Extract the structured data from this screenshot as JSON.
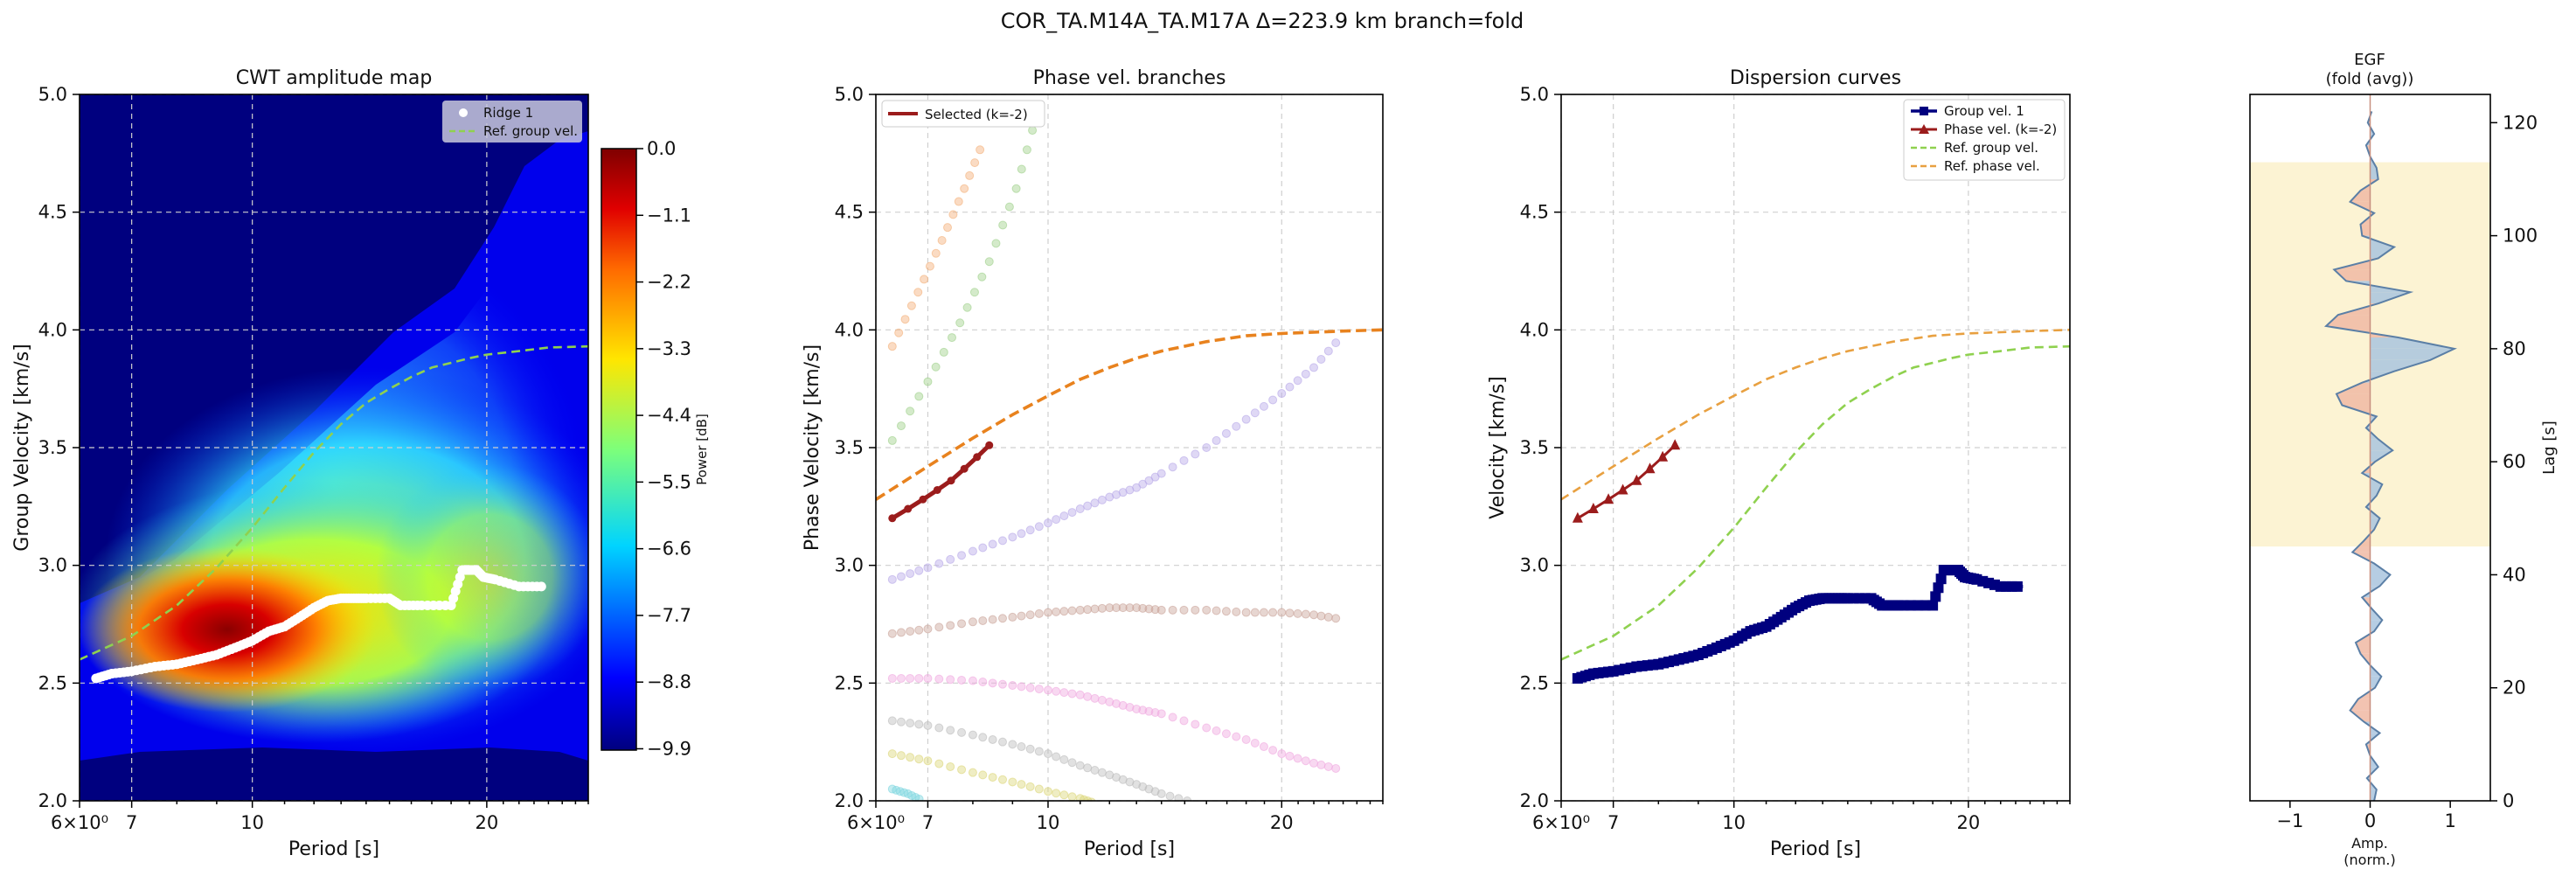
{
  "suptitle": "COR_TA.M14A_TA.M17A  Δ=223.9 km  branch=fold",
  "colors": {
    "ridge": "#ffffff",
    "ref_group": "#8fd14f",
    "ref_phase": "#e8821e",
    "selected": "#9b1c1c",
    "group_curve": "#00007f",
    "phase_curve": "#9b1c1c",
    "egf_line": "#5b7fa6",
    "egf_pos": "#a9c4de",
    "egf_neg": "#f0b8a3",
    "window": "#fbefc4"
  },
  "chart_data": [
    {
      "type": "heatmap",
      "title": "CWT amplitude map",
      "xlabel": "Period [s]",
      "ylabel": "Group Velocity [km/s]",
      "xscale": "log",
      "xlim": [
        6,
        27
      ],
      "ylim": [
        2.0,
        5.0
      ],
      "xticks": [
        6,
        7,
        10,
        20
      ],
      "xtick_labels": [
        "6×10⁰",
        "7",
        "10",
        "20"
      ],
      "yticks": [
        2.0,
        2.5,
        3.0,
        3.5,
        4.0,
        4.5,
        5.0
      ],
      "ytick_labels": [
        "2.0",
        "2.5",
        "3.0",
        "3.5",
        "4.0",
        "4.5",
        "5.0"
      ],
      "grid": true,
      "legend": {
        "position": "top-right",
        "entries": [
          "Ridge 1",
          "Ref. group vel."
        ]
      },
      "colorbar": {
        "label": "Power [dB]",
        "range": [
          -9.9,
          0.0
        ],
        "ticks": [
          "0.0",
          "−1.1",
          "−2.2",
          "−3.3",
          "−4.4",
          "−5.5",
          "−6.6",
          "−7.7",
          "−8.8",
          "−9.9"
        ]
      },
      "ridge": {
        "name": "Ridge 1",
        "x": [
          6.3,
          6.6,
          7.0,
          7.5,
          8.0,
          8.5,
          9.0,
          9.5,
          10.0,
          10.5,
          11.0,
          11.5,
          12.0,
          12.5,
          13.0,
          13.5,
          14.0,
          15.0,
          15.5,
          16.5,
          18.0,
          18.6,
          19.0,
          19.4,
          19.8,
          20.5,
          22.0,
          23.5
        ],
        "y": [
          2.52,
          2.54,
          2.55,
          2.57,
          2.58,
          2.6,
          2.62,
          2.65,
          2.68,
          2.72,
          2.74,
          2.78,
          2.82,
          2.85,
          2.86,
          2.86,
          2.86,
          2.86,
          2.83,
          2.83,
          2.83,
          2.98,
          2.98,
          2.98,
          2.95,
          2.94,
          2.91,
          2.91
        ]
      },
      "ref_group": {
        "name": "Ref. group vel.",
        "x": [
          6.0,
          7.0,
          8.0,
          9.0,
          10.0,
          11.0,
          12.0,
          13.0,
          14.0,
          15.0,
          16.0,
          17.0,
          18.0,
          19.0,
          20.0,
          22.0,
          24.0,
          27.0
        ],
        "y": [
          2.6,
          2.7,
          2.83,
          2.99,
          3.16,
          3.33,
          3.48,
          3.6,
          3.69,
          3.75,
          3.8,
          3.84,
          3.86,
          3.88,
          3.895,
          3.91,
          3.925,
          3.93
        ]
      }
    },
    {
      "type": "scatter",
      "title": "Phase vel. branches",
      "xlabel": "Period [s]",
      "ylabel": "Phase Velocity [km/s]",
      "xscale": "log",
      "xlim": [
        6,
        27
      ],
      "ylim": [
        2.0,
        5.0
      ],
      "xticks": [
        6,
        7,
        10,
        20
      ],
      "xtick_labels": [
        "6×10⁰",
        "7",
        "10",
        "20"
      ],
      "yticks": [
        2.0,
        2.5,
        3.0,
        3.5,
        4.0,
        4.5,
        5.0
      ],
      "ytick_labels": [
        "2.0",
        "2.5",
        "3.0",
        "3.5",
        "4.0",
        "4.5",
        "5.0"
      ],
      "grid": true,
      "legend": {
        "position": "top-left",
        "entries": [
          "Selected (k=-2)"
        ]
      },
      "selected": {
        "name": "Selected (k=-2)",
        "x": [
          6.3,
          6.6,
          6.9,
          7.2,
          7.5,
          7.8,
          8.1,
          8.4
        ],
        "y": [
          3.2,
          3.24,
          3.28,
          3.32,
          3.36,
          3.41,
          3.46,
          3.51
        ]
      },
      "ref_phase": {
        "x": [
          6.0,
          7.0,
          8.0,
          9.0,
          10.0,
          11.0,
          12.0,
          13.0,
          14.0,
          16.0,
          18.0,
          20.0,
          22.0,
          24.0,
          27.0
        ],
        "y": [
          3.28,
          3.42,
          3.54,
          3.64,
          3.72,
          3.79,
          3.84,
          3.88,
          3.91,
          3.95,
          3.975,
          3.985,
          3.99,
          3.995,
          4.0
        ]
      },
      "branches": [
        {
          "color": "#f4b07a",
          "x": [
            6.3,
            6.8,
            7.3,
            7.8,
            8.3
          ],
          "y": [
            3.93,
            4.16,
            4.38,
            4.6,
            4.82
          ]
        },
        {
          "color": "#9fd08a",
          "x": [
            6.3,
            7.0,
            7.7,
            8.4,
            9.1,
            9.7
          ],
          "y": [
            3.53,
            3.78,
            4.03,
            4.29,
            4.6,
            4.93
          ]
        },
        {
          "color": "#b8a8e8",
          "x": [
            6.3,
            7.0,
            8.0,
            9.0,
            10.0,
            11.0,
            12.0,
            13.0,
            14.0,
            16.0,
            18.0,
            20.0,
            22.0,
            24.0
          ],
          "y": [
            2.94,
            2.99,
            3.06,
            3.12,
            3.18,
            3.24,
            3.29,
            3.33,
            3.39,
            3.5,
            3.62,
            3.73,
            3.84,
            3.98
          ]
        },
        {
          "color": "#caa49a",
          "x": [
            6.3,
            7.0,
            8.0,
            9.0,
            10.0,
            11.0,
            12.0,
            13.0,
            14.0,
            16.0,
            18.0,
            20.0,
            22.0,
            24.0
          ],
          "y": [
            2.71,
            2.73,
            2.76,
            2.78,
            2.8,
            2.81,
            2.82,
            2.82,
            2.81,
            2.81,
            2.8,
            2.8,
            2.79,
            2.77
          ]
        },
        {
          "color": "#f0a8e0",
          "x": [
            6.3,
            7.0,
            8.0,
            9.0,
            10.0,
            11.0,
            12.0,
            13.0,
            14.0,
            16.0,
            18.0,
            20.0,
            22.0,
            24.0
          ],
          "y": [
            2.52,
            2.52,
            2.51,
            2.49,
            2.47,
            2.45,
            2.42,
            2.39,
            2.37,
            2.31,
            2.26,
            2.2,
            2.16,
            2.13
          ]
        },
        {
          "color": "#bdbdbd",
          "x": [
            6.3,
            7.0,
            8.0,
            9.0,
            10.0,
            11.0,
            12.0,
            13.0,
            14.0,
            15.5
          ],
          "y": [
            2.34,
            2.32,
            2.28,
            2.24,
            2.2,
            2.15,
            2.11,
            2.07,
            2.03,
            1.99
          ]
        },
        {
          "color": "#dcd67a",
          "x": [
            6.3,
            7.0,
            8.0,
            9.0,
            10.0,
            11.0,
            11.5
          ],
          "y": [
            2.2,
            2.17,
            2.12,
            2.08,
            2.04,
            2.01,
            1.99
          ]
        },
        {
          "color": "#7fd6e0",
          "x": [
            6.3,
            6.6,
            6.9
          ],
          "y": [
            2.05,
            2.03,
            2.0
          ]
        }
      ]
    },
    {
      "type": "line",
      "title": "Dispersion curves",
      "xlabel": "Period [s]",
      "ylabel": "Velocity [km/s]",
      "xscale": "log",
      "xlim": [
        6,
        27
      ],
      "ylim": [
        2.0,
        5.0
      ],
      "xticks": [
        6,
        7,
        10,
        20
      ],
      "xtick_labels": [
        "6×10⁰",
        "7",
        "10",
        "20"
      ],
      "yticks": [
        2.0,
        2.5,
        3.0,
        3.5,
        4.0,
        4.5,
        5.0
      ],
      "ytick_labels": [
        "2.0",
        "2.5",
        "3.0",
        "3.5",
        "4.0",
        "4.5",
        "5.0"
      ],
      "grid": true,
      "legend": {
        "position": "top-right",
        "entries": [
          "Group vel. 1",
          "Phase vel. (k=-2)",
          "Ref. group vel.",
          "Ref. phase vel."
        ]
      },
      "series": [
        {
          "name": "Group vel. 1",
          "x": [
            6.3,
            6.6,
            7.0,
            7.5,
            8.0,
            8.5,
            9.0,
            9.5,
            10.0,
            10.5,
            11.0,
            11.5,
            12.0,
            12.5,
            13.0,
            13.5,
            14.0,
            15.0,
            15.5,
            16.5,
            18.0,
            18.6,
            19.0,
            19.4,
            19.8,
            20.5,
            22.0,
            23.5
          ],
          "y": [
            2.52,
            2.54,
            2.55,
            2.57,
            2.58,
            2.6,
            2.62,
            2.65,
            2.68,
            2.72,
            2.74,
            2.78,
            2.82,
            2.85,
            2.86,
            2.86,
            2.86,
            2.86,
            2.83,
            2.83,
            2.83,
            2.98,
            2.98,
            2.98,
            2.95,
            2.94,
            2.91,
            2.91
          ]
        },
        {
          "name": "Phase vel. (k=-2)",
          "x": [
            6.3,
            6.6,
            6.9,
            7.2,
            7.5,
            7.8,
            8.1,
            8.4
          ],
          "y": [
            3.2,
            3.24,
            3.28,
            3.32,
            3.36,
            3.41,
            3.46,
            3.51
          ]
        },
        {
          "name": "Ref. group vel.",
          "x": [
            6.0,
            7.0,
            8.0,
            9.0,
            10.0,
            11.0,
            12.0,
            13.0,
            14.0,
            15.0,
            16.0,
            17.0,
            18.0,
            19.0,
            20.0,
            22.0,
            24.0,
            27.0
          ],
          "y": [
            2.6,
            2.7,
            2.83,
            2.99,
            3.16,
            3.33,
            3.48,
            3.6,
            3.69,
            3.75,
            3.8,
            3.84,
            3.86,
            3.88,
            3.895,
            3.91,
            3.925,
            3.93
          ]
        },
        {
          "name": "Ref. phase vel.",
          "x": [
            6.0,
            7.0,
            8.0,
            9.0,
            10.0,
            11.0,
            12.0,
            13.0,
            14.0,
            16.0,
            18.0,
            20.0,
            22.0,
            24.0,
            27.0
          ],
          "y": [
            3.28,
            3.42,
            3.54,
            3.64,
            3.72,
            3.79,
            3.84,
            3.88,
            3.91,
            3.95,
            3.975,
            3.985,
            3.99,
            3.995,
            4.0
          ]
        }
      ]
    },
    {
      "type": "area",
      "title": "EGF\n(fold (avg))",
      "xlabel": "Amp.\n(norm.)",
      "ylabel": "Lag [s]",
      "xlim": [
        -1.5,
        1.5
      ],
      "ylim": [
        0,
        125
      ],
      "xticks": [
        -1,
        0,
        1
      ],
      "xtick_labels": [
        "−1",
        "0",
        "1"
      ],
      "yticks": [
        0,
        20,
        40,
        60,
        80,
        100,
        120
      ],
      "ytick_labels": [
        "0",
        "20",
        "40",
        "60",
        "80",
        "100",
        "120"
      ],
      "window": [
        45,
        113
      ],
      "lag": [
        0,
        2,
        4,
        6,
        8,
        10,
        12,
        14,
        16,
        18,
        20,
        22,
        24,
        26,
        28,
        30,
        32,
        34,
        36,
        38,
        40,
        42,
        44,
        46,
        48,
        50,
        52,
        54,
        56,
        58,
        60,
        62,
        64,
        66,
        68,
        70,
        72,
        74,
        76,
        78,
        80,
        82,
        84,
        86,
        88,
        90,
        92,
        94,
        96,
        98,
        100,
        102,
        104,
        106,
        108,
        110,
        112,
        114,
        116,
        118,
        120,
        122
      ],
      "amp": [
        0.05,
        0.08,
        -0.04,
        0.1,
        0.0,
        -0.05,
        0.12,
        -0.08,
        -0.25,
        -0.15,
        0.06,
        0.14,
        0.0,
        -0.12,
        -0.18,
        0.05,
        0.15,
        0.02,
        -0.1,
        0.12,
        0.25,
        0.05,
        -0.22,
        -0.08,
        0.05,
        0.12,
        -0.05,
        0.08,
        0.15,
        -0.1,
        0.06,
        0.28,
        0.1,
        -0.05,
        0.08,
        -0.35,
        -0.42,
        -0.1,
        0.3,
        0.75,
        1.05,
        0.35,
        -0.55,
        -0.4,
        0.1,
        0.5,
        -0.3,
        -0.45,
        0.1,
        0.3,
        -0.1,
        -0.12,
        0.05,
        -0.25,
        -0.12,
        0.1,
        0.08,
        0.0,
        -0.05,
        0.05,
        -0.03,
        0.02
      ]
    }
  ]
}
